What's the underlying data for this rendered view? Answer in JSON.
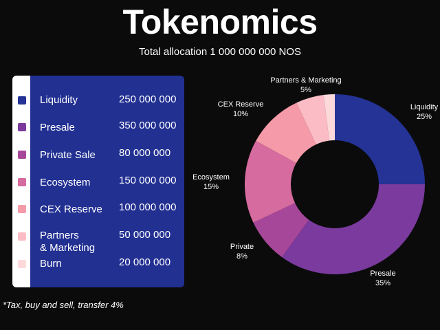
{
  "header": {
    "title": "Tokenomics",
    "subtitle": "Total allocation 1 000 000 000 NOS"
  },
  "legend": [
    {
      "name": "Liquidity",
      "amount": "250 000 000",
      "color": "#243395"
    },
    {
      "name": "Presale",
      "amount": "350 000 000",
      "color": "#7a3a9e"
    },
    {
      "name": "Private Sale",
      "amount": "80 000 000",
      "color": "#a7479a"
    },
    {
      "name": "Ecosystem",
      "amount": "150 000 000",
      "color": "#d66b9f"
    },
    {
      "name": "CEX Reserve",
      "amount": "100 000 000",
      "color": "#f59aa8"
    },
    {
      "name": "Partners\n& Marketing",
      "amount": "50 000 000",
      "color": "#fbbcc5"
    },
    {
      "name": "Burn",
      "amount": "20 000 000",
      "color": "#fdd9dc"
    }
  ],
  "footnote": "*Tax, buy and sell, transfer 4%",
  "chart_data": {
    "type": "pie",
    "donut": true,
    "slices": [
      {
        "name": "Liquidity",
        "value": 25,
        "label": "Liquidity",
        "pct_label": "25%",
        "color": "#243395"
      },
      {
        "name": "Presale",
        "value": 35,
        "label": "Presale",
        "pct_label": "35%",
        "color": "#7a3a9e"
      },
      {
        "name": "Private",
        "value": 8,
        "label": "Private",
        "pct_label": "8%",
        "color": "#a7479a"
      },
      {
        "name": "Ecosystem",
        "value": 15,
        "label": "Ecosystem",
        "pct_label": "15%",
        "color": "#d66b9f"
      },
      {
        "name": "CEX Reserve",
        "value": 10,
        "label": "CEX Reserve",
        "pct_label": "10%",
        "color": "#f59aa8"
      },
      {
        "name": "Partners & Marketing",
        "value": 5,
        "label": "Partners & Marketing",
        "pct_label": "5%",
        "color": "#fbbcc5"
      },
      {
        "name": "Burn",
        "value": 2,
        "label": "",
        "pct_label": "",
        "color": "#fdd9dc"
      }
    ]
  }
}
